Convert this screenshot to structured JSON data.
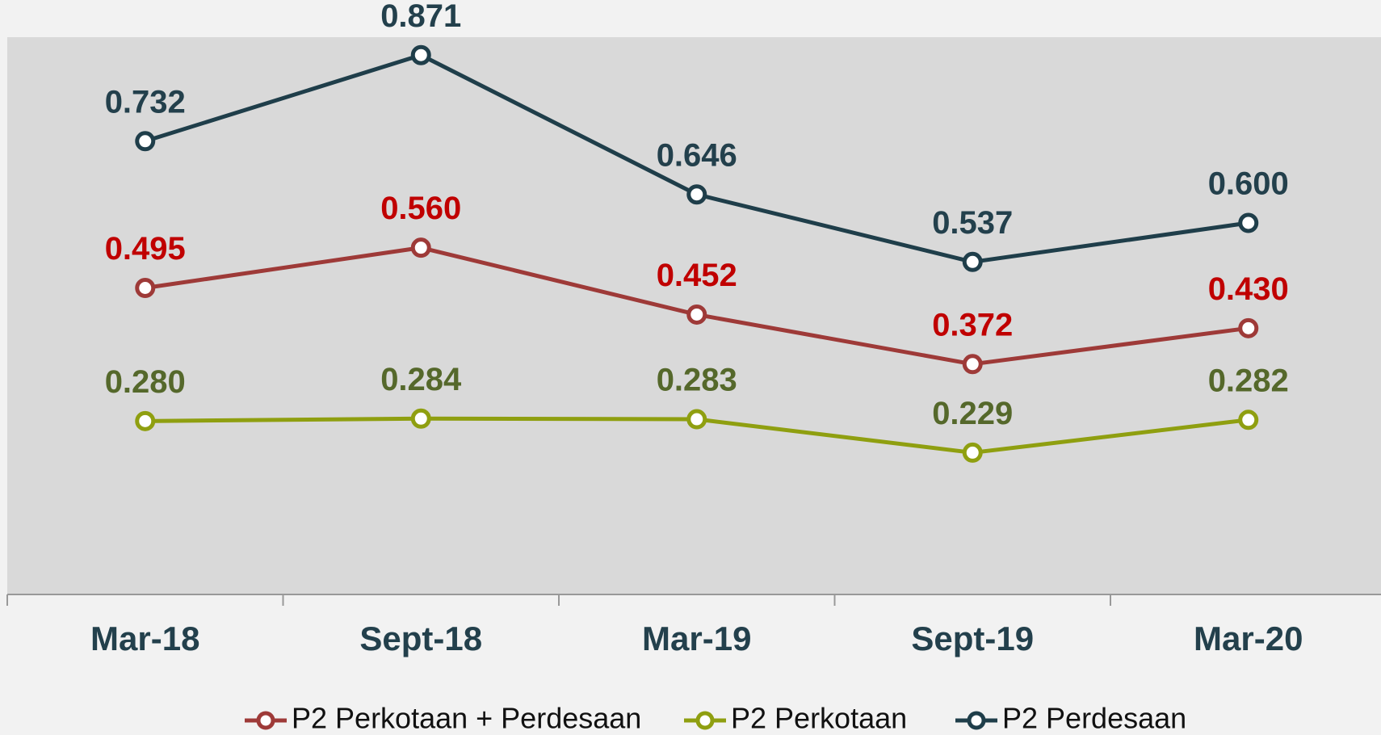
{
  "chart_data": {
    "type": "line",
    "categories": [
      "Mar-18",
      "Sept-18",
      "Mar-19",
      "Sept-19",
      "Mar-20"
    ],
    "series": [
      {
        "name": "P2 Perkotaan + Perdesaan",
        "color": "#9e3a38",
        "label_color": "#c00000",
        "values": [
          0.495,
          0.56,
          0.452,
          0.372,
          0.43
        ],
        "value_labels": [
          "0.495",
          "0.560",
          "0.452",
          "0.372",
          "0.430"
        ]
      },
      {
        "name": "P2 Perkotaan",
        "color": "#8f9f10",
        "label_color": "#55682b",
        "values": [
          0.28,
          0.284,
          0.283,
          0.229,
          0.282
        ],
        "value_labels": [
          "0.280",
          "0.284",
          "0.283",
          "0.229",
          "0.282"
        ]
      },
      {
        "name": "P2 Perdesaan",
        "color": "#1f3e4a",
        "label_color": "#23404c",
        "values": [
          0.732,
          0.871,
          0.646,
          0.537,
          0.6
        ],
        "value_labels": [
          "0.732",
          "0.871",
          "0.646",
          "0.537",
          "0.600"
        ]
      }
    ],
    "ylim": [
      0,
      0.9
    ]
  }
}
